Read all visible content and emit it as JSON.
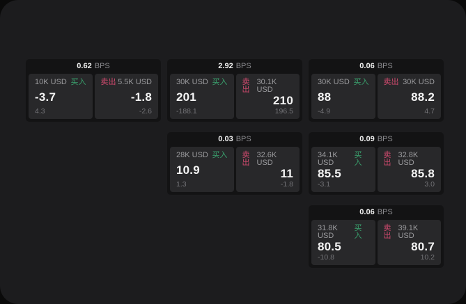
{
  "labels": {
    "bps_suffix": "BPS",
    "buy": "买入",
    "sell": "卖出"
  },
  "colors": {
    "window_bg": "#1c1c1e",
    "outside_bg": "#0a0a0a",
    "card_bg": "#131314",
    "tile_bg": "#28282a",
    "buy_green": "#3aa26e",
    "sell_red": "#d04a6e",
    "primary_text": "#f4f4f4",
    "muted_text": "#9b9b9e"
  },
  "cards": [
    {
      "bps": "0.62",
      "row": 1,
      "col": 1,
      "buy": {
        "size": "10K USD",
        "price": "-3.7",
        "delta": "4.3"
      },
      "sell": {
        "size": "5.5K USD",
        "price": "-1.8",
        "delta": "-2.6"
      }
    },
    {
      "bps": "2.92",
      "row": 1,
      "col": 2,
      "buy": {
        "size": "30K USD",
        "price": "201",
        "delta": "-188.1"
      },
      "sell": {
        "size": "30.1K USD",
        "price": "210",
        "delta": "196.5"
      }
    },
    {
      "bps": "0.06",
      "row": 1,
      "col": 3,
      "buy": {
        "size": "30K USD",
        "price": "88",
        "delta": "-4.9"
      },
      "sell": {
        "size": "30K USD",
        "price": "88.2",
        "delta": "4.7"
      }
    },
    {
      "bps": "0.03",
      "row": 2,
      "col": 2,
      "buy": {
        "size": "28K USD",
        "price": "10.9",
        "delta": "1.3"
      },
      "sell": {
        "size": "32.6K USD",
        "price": "11",
        "delta": "-1.8"
      }
    },
    {
      "bps": "0.09",
      "row": 2,
      "col": 3,
      "buy": {
        "size": "34.1K USD",
        "price": "85.5",
        "delta": "-3.1"
      },
      "sell": {
        "size": "32.8K USD",
        "price": "85.8",
        "delta": "3.0"
      }
    },
    {
      "bps": "0.06",
      "row": 3,
      "col": 3,
      "buy": {
        "size": "31.8K USD",
        "price": "80.5",
        "delta": "-10.8"
      },
      "sell": {
        "size": "39.1K USD",
        "price": "80.7",
        "delta": "10.2"
      }
    }
  ]
}
